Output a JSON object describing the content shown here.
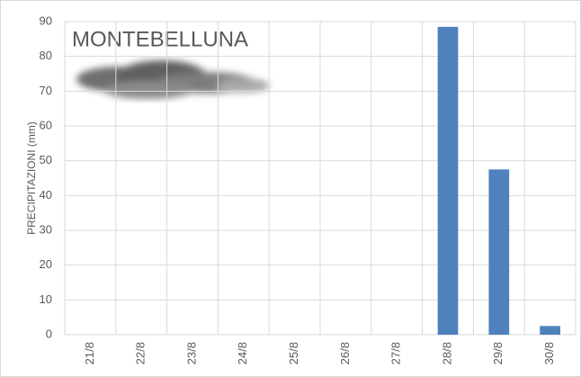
{
  "chart_data": {
    "type": "bar",
    "title": "MONTEBELLUNA",
    "y_label": "PRECIPITAZIONI (mm)",
    "categories": [
      "21/8",
      "22/8",
      "23/8",
      "24/8",
      "25/8",
      "26/8",
      "27/8",
      "28/8",
      "29/8",
      "30/8"
    ],
    "values": [
      0,
      0,
      0,
      0,
      0,
      0,
      0,
      88.5,
      47.5,
      2.5
    ],
    "color": "#4f81bd",
    "ylim": [
      0,
      90
    ],
    "yticks": [
      0,
      10,
      20,
      30,
      40,
      50,
      60,
      70,
      80,
      90
    ],
    "grid": true
  }
}
